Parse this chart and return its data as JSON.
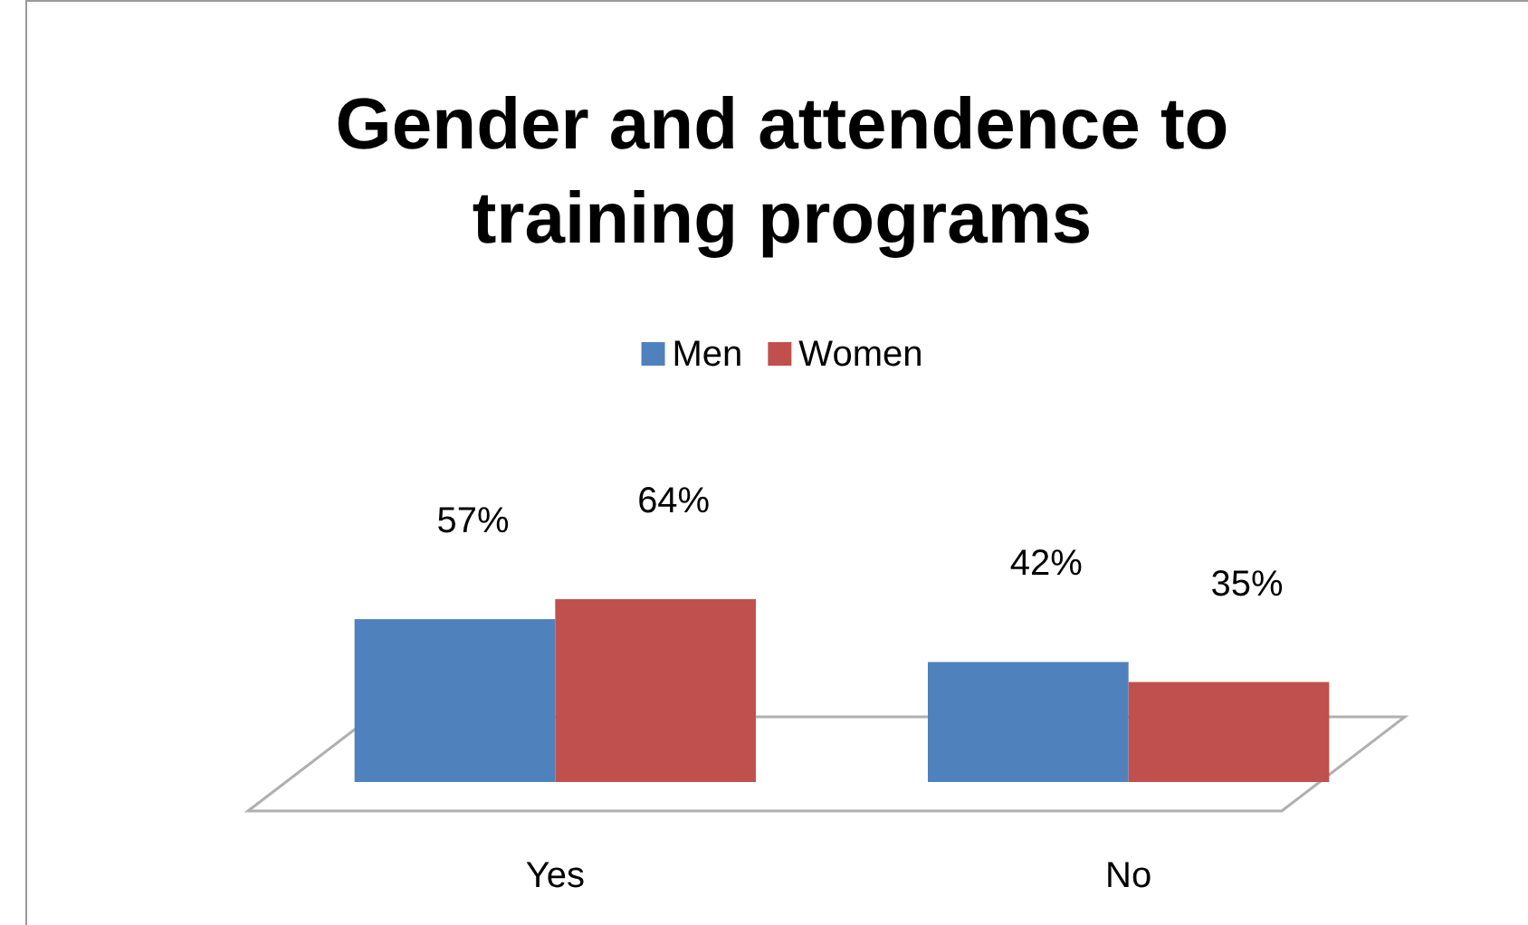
{
  "chart_data": {
    "type": "bar",
    "title": "Gender and attendence to training programs",
    "categories": [
      "Yes",
      "No"
    ],
    "series": [
      {
        "name": "Men",
        "color": "#4f81bd",
        "values": [
          57,
          42
        ],
        "value_labels": [
          "57%",
          "42%"
        ]
      },
      {
        "name": "Women",
        "color": "#c0504d",
        "values": [
          64,
          35
        ],
        "value_labels": [
          "64%",
          "35%"
        ]
      }
    ],
    "legend": "top"
  }
}
